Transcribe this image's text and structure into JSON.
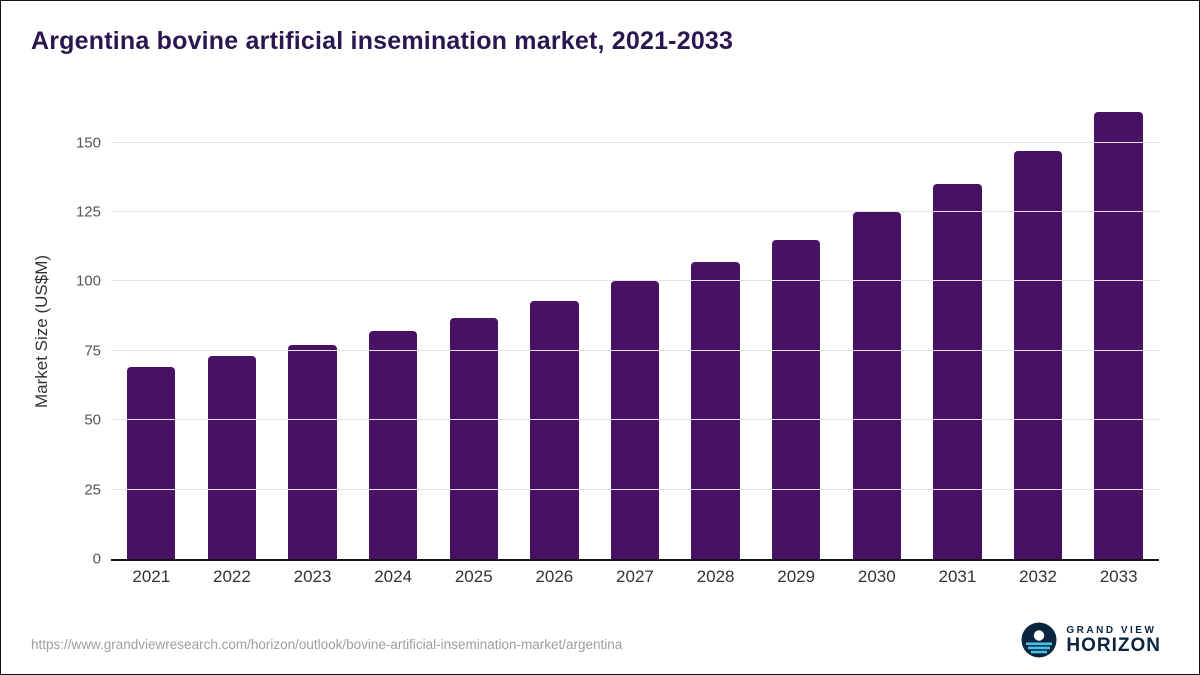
{
  "title": "Argentina bovine artificial insemination market, 2021-2033",
  "footer": {
    "source_url": "https://www.grandviewresearch.com/horizon/outlook/bovine-artificial-insemination-market/argentina",
    "logo_text_top": "GRAND VIEW",
    "logo_text_bottom": "HORIZON"
  },
  "colors": {
    "bar": "#481264",
    "title": "#2b1750",
    "grid": "#e3e3e3",
    "footer_text": "#9e9e9e",
    "logo_navy": "#0a2540",
    "logo_blue": "#45c2e9"
  },
  "chart_data": {
    "type": "bar",
    "title": "Argentina bovine artificial insemination market, 2021-2033",
    "xlabel": "",
    "ylabel": "Market Size (US$M)",
    "categories": [
      "2021",
      "2022",
      "2023",
      "2024",
      "2025",
      "2026",
      "2027",
      "2028",
      "2029",
      "2030",
      "2031",
      "2032",
      "2033"
    ],
    "values": [
      69,
      73,
      77,
      82,
      87,
      93,
      100,
      107,
      115,
      125,
      135,
      147,
      161
    ],
    "yticks": [
      0,
      25,
      50,
      75,
      100,
      125,
      150
    ],
    "ylim": [
      0,
      165
    ],
    "grid": true,
    "legend": false
  }
}
